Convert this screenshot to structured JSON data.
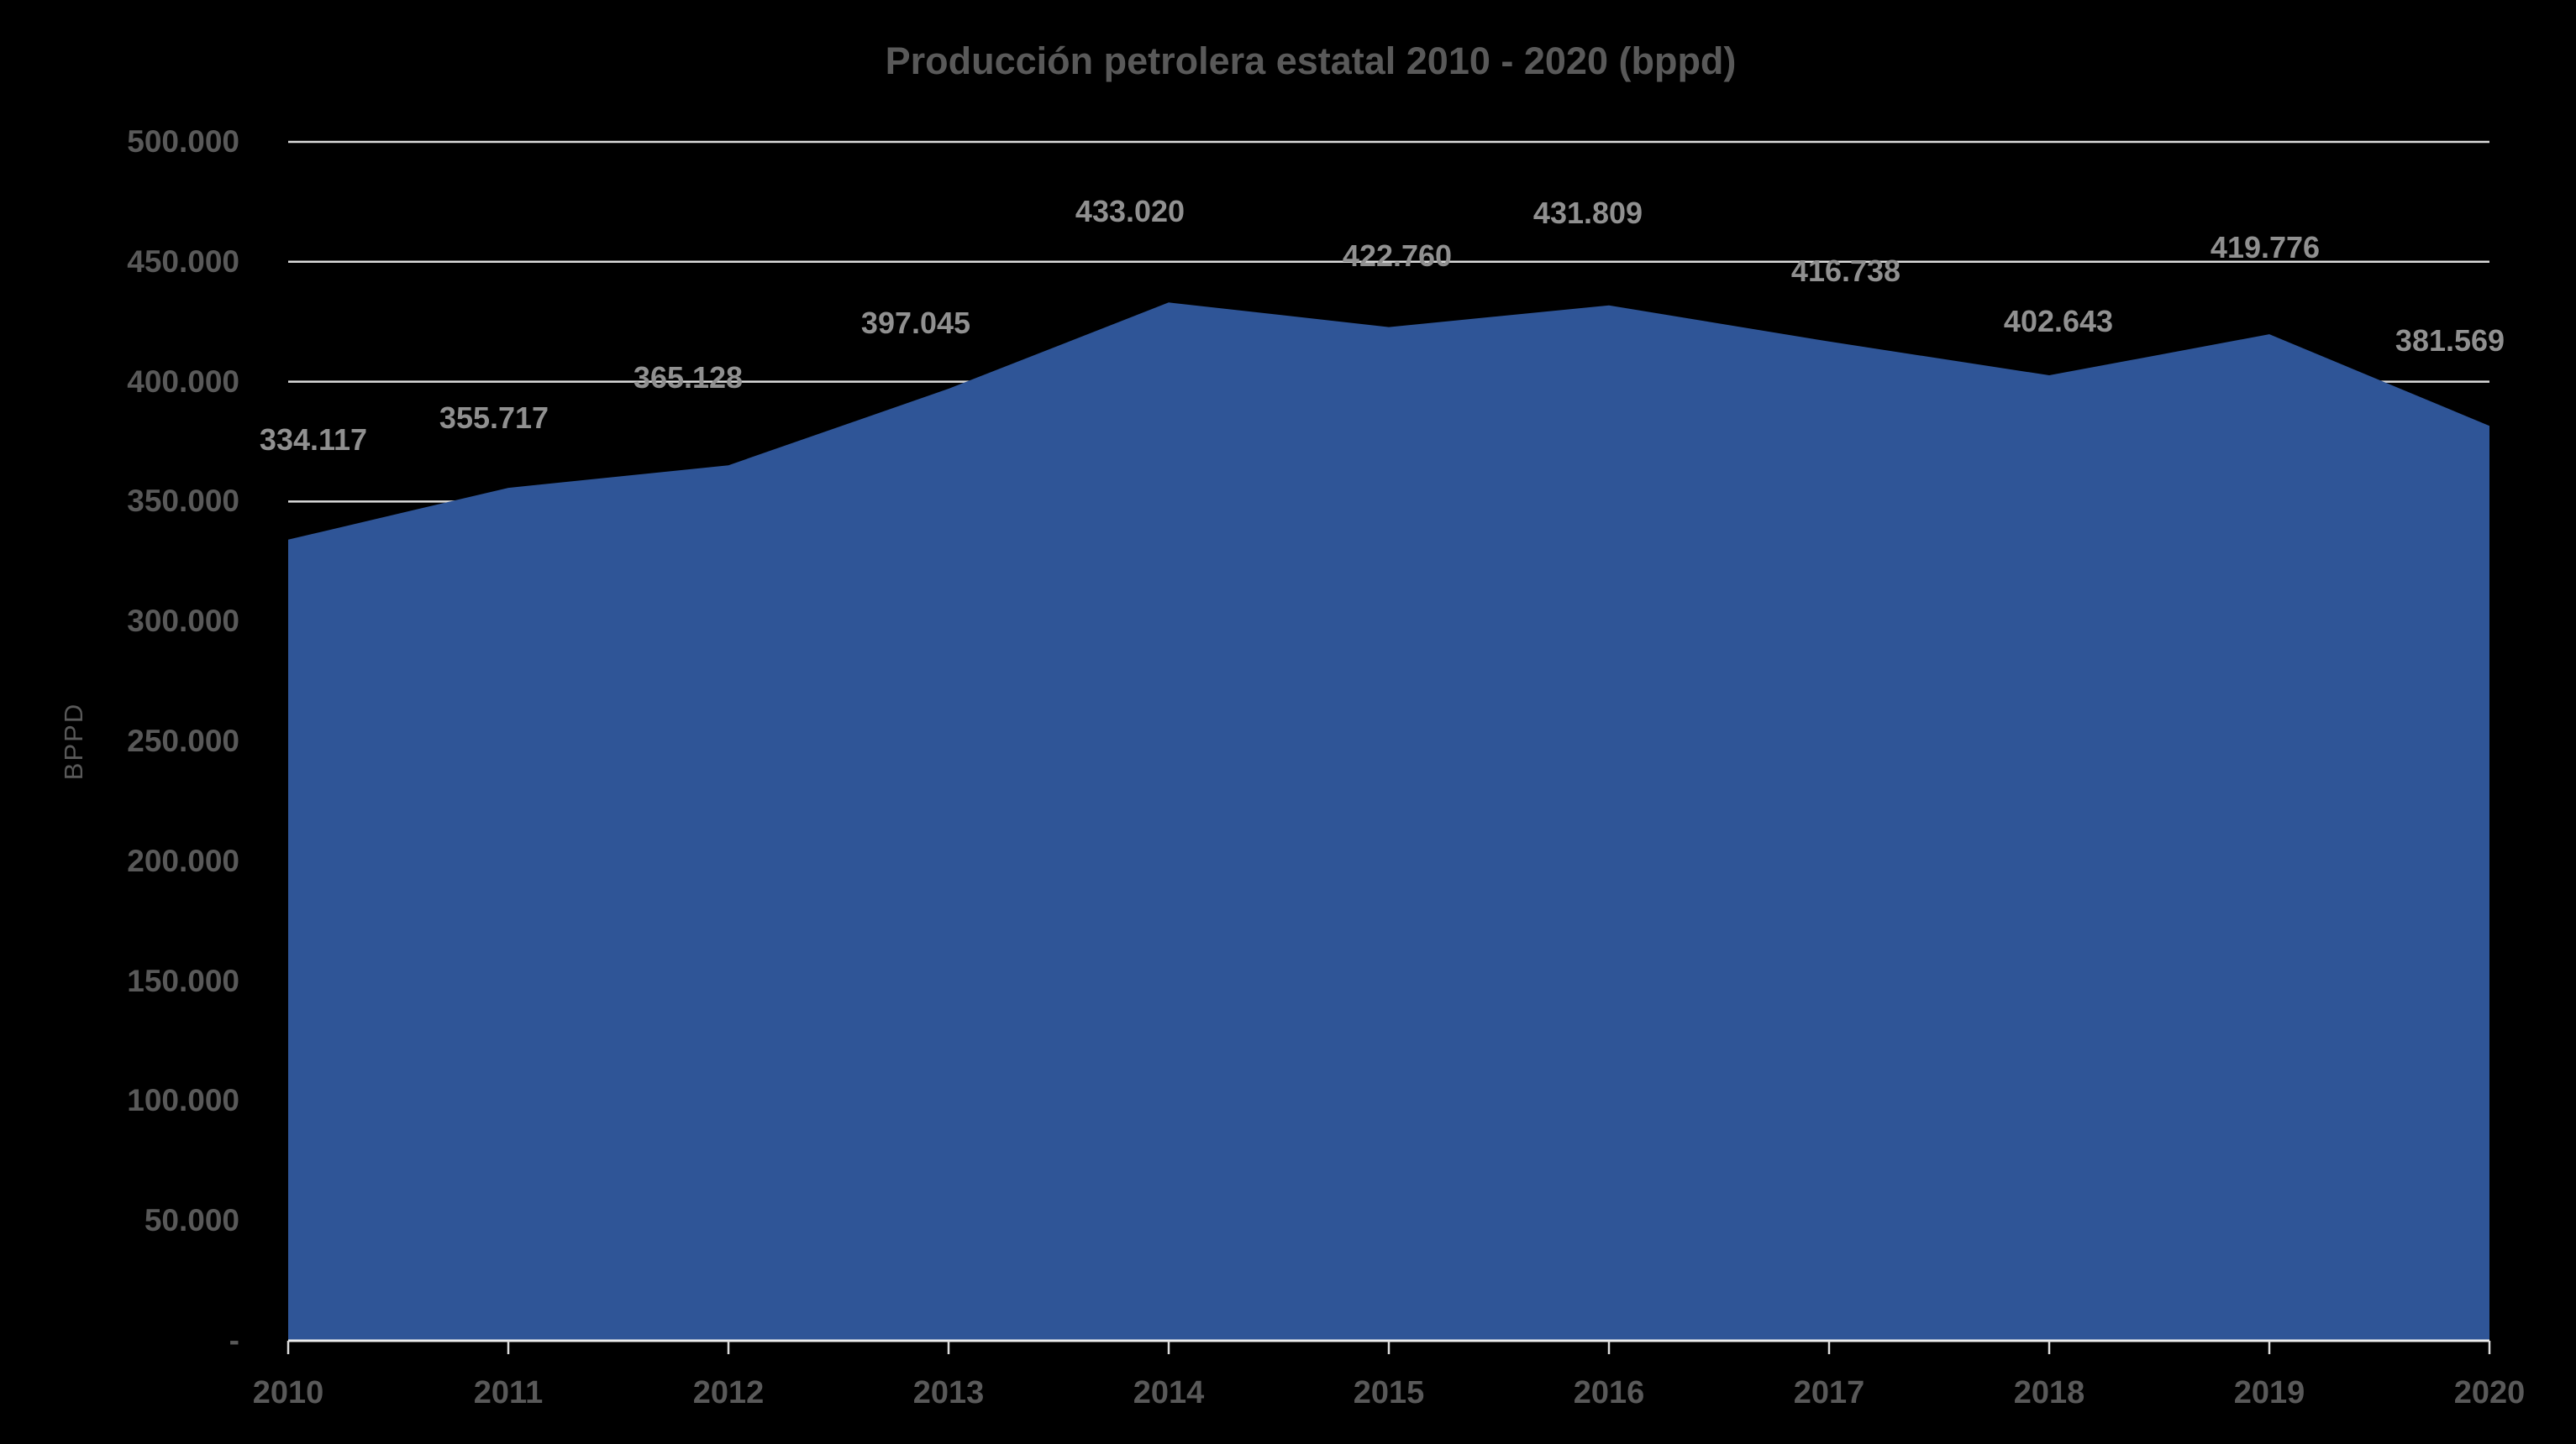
{
  "chart_data": {
    "type": "area",
    "title": "Producción petrolera estatal 2010 - 2020 (bppd)",
    "ylabel": "BPPD",
    "xlabel": "",
    "categories": [
      "2010",
      "2011",
      "2012",
      "2013",
      "2014",
      "2015",
      "2016",
      "2017",
      "2018",
      "2019",
      "2020"
    ],
    "series": [
      {
        "name": "Producción petrolera estatal (bppd)",
        "values": [
          334117,
          355717,
          365128,
          397045,
          433020,
          422760,
          431809,
          416738,
          402643,
          419776,
          381569
        ]
      }
    ],
    "data_labels": [
      "334.117",
      "355.717",
      "365.128",
      "397.045",
      "433.020",
      "422.760",
      "431.809",
      "416.738",
      "402.643",
      "419.776",
      "381.569"
    ],
    "y_ticks": [
      {
        "label": "500.000",
        "value": 500000
      },
      {
        "label": "450.000",
        "value": 450000
      },
      {
        "label": "400.000",
        "value": 400000
      },
      {
        "label": "350.000",
        "value": 350000
      },
      {
        "label": "300.000",
        "value": 300000
      },
      {
        "label": "250.000",
        "value": 250000
      },
      {
        "label": "200.000",
        "value": 200000
      },
      {
        "label": "150.000",
        "value": 150000
      },
      {
        "label": "100.000",
        "value": 100000
      },
      {
        "label": "50.000",
        "value": 50000
      },
      {
        "label": "-",
        "value": 0
      }
    ],
    "ylim": [
      0,
      500000
    ],
    "grid": true,
    "legend": "none",
    "colors": {
      "background": "#000000",
      "area_fill": "#2F5597",
      "gridline": "#DCDCDC",
      "axis_line": "#EDEDED",
      "title_text": "#595959",
      "axis_text": "#595959",
      "data_label_text": "#909090"
    }
  }
}
